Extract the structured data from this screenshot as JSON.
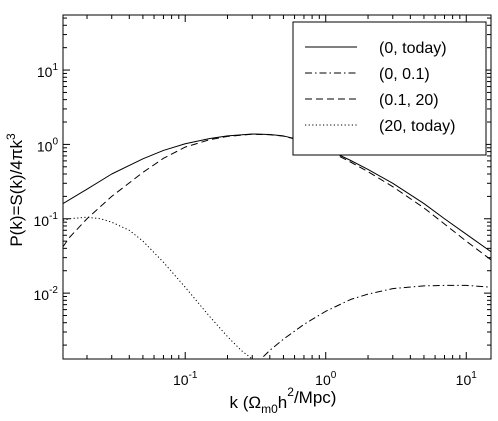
{
  "chart_data": {
    "type": "line",
    "title": "",
    "xlabel": "k (Ω_m0 h^2/Mpc)",
    "ylabel": "P(k)=S(k)/4πk^3",
    "xscale": "log",
    "yscale": "log",
    "xlim": [
      0.0135,
      15
    ],
    "ylim": [
      0.0013,
      55
    ],
    "x_ticks": [
      {
        "base": "10",
        "exp": "-1",
        "value": 0.1
      },
      {
        "base": "10",
        "exp": "0",
        "value": 1
      },
      {
        "base": "10",
        "exp": "1",
        "value": 10
      }
    ],
    "y_ticks": [
      {
        "base": "10",
        "exp": "-2",
        "value": 0.01
      },
      {
        "base": "10",
        "exp": "-1",
        "value": 0.1
      },
      {
        "base": "10",
        "exp": "0",
        "value": 1
      },
      {
        "base": "10",
        "exp": "1",
        "value": 10
      }
    ],
    "grid": false,
    "legend_position": "top-right",
    "series": [
      {
        "name": "(0, today)",
        "style": "solid",
        "color": "#000000",
        "x": [
          0.0135,
          0.02,
          0.03,
          0.05,
          0.07,
          0.1,
          0.15,
          0.2,
          0.3,
          0.4,
          0.5,
          0.7,
          1.0,
          1.5,
          2,
          3,
          5,
          7,
          10,
          15
        ],
        "y": [
          0.16,
          0.25,
          0.4,
          0.64,
          0.83,
          1.02,
          1.2,
          1.3,
          1.38,
          1.36,
          1.3,
          1.12,
          0.88,
          0.61,
          0.46,
          0.3,
          0.16,
          0.1,
          0.062,
          0.036
        ]
      },
      {
        "name": "(0, 0.1)",
        "style": "dashdot",
        "color": "#000000",
        "x": [
          0.36,
          0.4,
          0.5,
          0.7,
          1.0,
          1.5,
          2,
          3,
          5,
          7,
          10,
          15
        ],
        "y": [
          0.0014,
          0.0017,
          0.0024,
          0.0038,
          0.0057,
          0.0082,
          0.0097,
          0.0115,
          0.0125,
          0.0127,
          0.0127,
          0.012
        ]
      },
      {
        "name": "(0.1, 20)",
        "style": "dashed",
        "color": "#000000",
        "x": [
          0.0135,
          0.015,
          0.02,
          0.03,
          0.05,
          0.07,
          0.1,
          0.15,
          0.2,
          0.3,
          0.4,
          0.5,
          0.7,
          1.0,
          1.5,
          2,
          3,
          5,
          7,
          10,
          15
        ],
        "y": [
          0.042,
          0.056,
          0.1,
          0.2,
          0.42,
          0.65,
          0.92,
          1.16,
          1.28,
          1.37,
          1.35,
          1.29,
          1.1,
          0.86,
          0.58,
          0.43,
          0.27,
          0.14,
          0.085,
          0.05,
          0.028
        ]
      },
      {
        "name": "(20, today)",
        "style": "dotted",
        "color": "#000000",
        "x": [
          0.0135,
          0.015,
          0.02,
          0.025,
          0.03,
          0.04,
          0.05,
          0.07,
          0.1,
          0.15,
          0.2,
          0.25,
          0.3
        ],
        "y": [
          0.095,
          0.1,
          0.105,
          0.1,
          0.09,
          0.07,
          0.05,
          0.026,
          0.012,
          0.0048,
          0.0026,
          0.0017,
          0.0013
        ]
      }
    ]
  }
}
